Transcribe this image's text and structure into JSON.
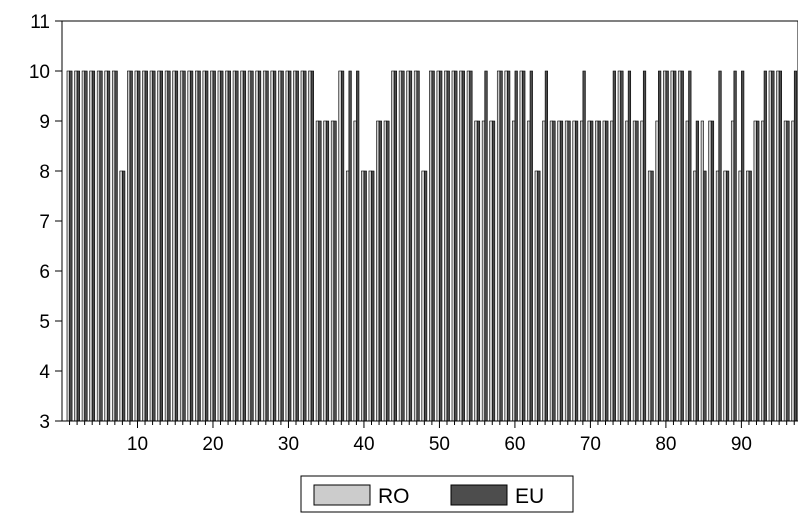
{
  "chart_data": {
    "type": "bar",
    "x": [
      1,
      2,
      3,
      4,
      5,
      6,
      7,
      8,
      9,
      10,
      11,
      12,
      13,
      14,
      15,
      16,
      17,
      18,
      19,
      20,
      21,
      22,
      23,
      24,
      25,
      26,
      27,
      28,
      29,
      30,
      31,
      32,
      33,
      34,
      35,
      36,
      37,
      38,
      39,
      40,
      41,
      42,
      43,
      44,
      45,
      46,
      47,
      48,
      49,
      50,
      51,
      52,
      53,
      54,
      55,
      56,
      57,
      58,
      59,
      60,
      61,
      62,
      63,
      64,
      65,
      66,
      67,
      68,
      69,
      70,
      71,
      72,
      73,
      74,
      75,
      76,
      77,
      78,
      79,
      80,
      81,
      82,
      83,
      84,
      85,
      86,
      87,
      88,
      89,
      90,
      91,
      92,
      93,
      94,
      95,
      96,
      97
    ],
    "series": [
      {
        "name": "RO",
        "color": "#cccccc",
        "values": [
          10,
          10,
          10,
          10,
          10,
          10,
          10,
          8,
          10,
          10,
          10,
          10,
          10,
          10,
          10,
          10,
          10,
          10,
          10,
          10,
          10,
          10,
          10,
          10,
          10,
          10,
          10,
          10,
          10,
          10,
          10,
          10,
          10,
          9,
          9,
          9,
          10,
          8,
          9,
          8,
          8,
          9,
          9,
          10,
          10,
          10,
          10,
          8,
          10,
          10,
          10,
          10,
          10,
          10,
          9,
          9,
          9,
          10,
          10,
          9,
          10,
          9,
          8,
          9,
          9,
          9,
          9,
          9,
          9,
          9,
          9,
          9,
          9,
          10,
          9,
          9,
          9,
          8,
          9,
          10,
          10,
          10,
          9,
          8,
          9,
          9,
          8,
          8,
          9,
          8,
          8,
          9,
          9,
          10,
          10,
          9,
          9
        ]
      },
      {
        "name": "EU",
        "color": "#4d4d4d",
        "values": [
          10,
          10,
          10,
          10,
          10,
          10,
          10,
          8,
          10,
          10,
          10,
          10,
          10,
          10,
          10,
          10,
          10,
          10,
          10,
          10,
          10,
          10,
          10,
          10,
          10,
          10,
          10,
          10,
          10,
          10,
          10,
          10,
          10,
          9,
          9,
          9,
          10,
          10,
          10,
          8,
          8,
          9,
          9,
          10,
          10,
          10,
          10,
          8,
          10,
          10,
          10,
          10,
          10,
          10,
          9,
          10,
          9,
          10,
          10,
          10,
          10,
          10,
          8,
          10,
          9,
          9,
          9,
          9,
          10,
          9,
          9,
          9,
          10,
          10,
          10,
          9,
          10,
          8,
          10,
          10,
          10,
          10,
          10,
          9,
          8,
          9,
          10,
          8,
          10,
          10,
          8,
          9,
          10,
          10,
          10,
          9,
          10
        ]
      }
    ],
    "xlim": [
      0,
      97.5
    ],
    "ylim": [
      3,
      11
    ],
    "xticks": [
      "10",
      "20",
      "30",
      "40",
      "50",
      "60",
      "70",
      "80",
      "90"
    ],
    "yticks": [
      "3",
      "4",
      "5",
      "6",
      "7",
      "8",
      "9",
      "10",
      "11"
    ],
    "grid": false,
    "legend_position": "bottom-center"
  }
}
